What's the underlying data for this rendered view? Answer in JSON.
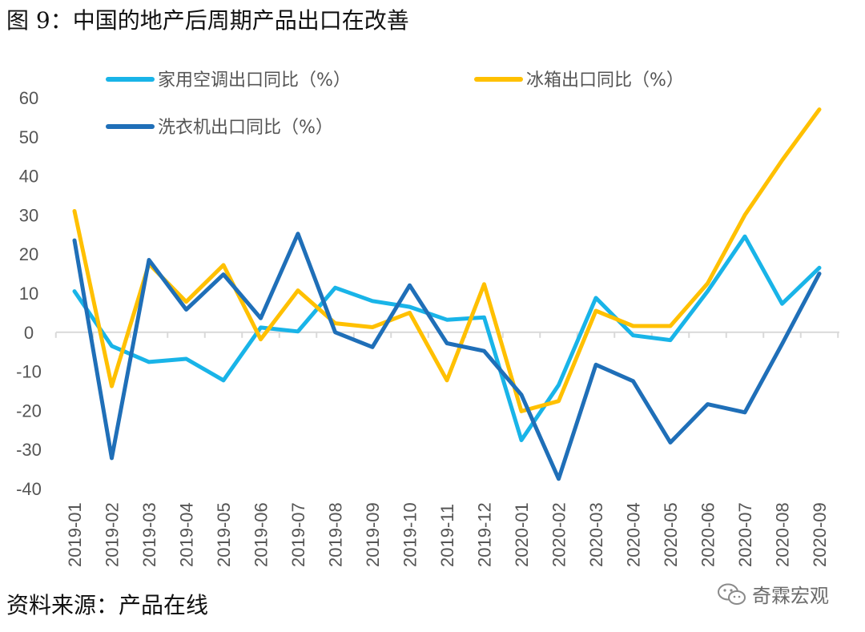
{
  "figure": {
    "title": "图 9：中国的地产后周期产品出口在改善",
    "source": "资料来源：产品在线",
    "watermark": "奇霖宏观",
    "watermark_icon": "wechat-icon"
  },
  "colors": {
    "ac": "#19B4E8",
    "fridge": "#FFC000",
    "washer": "#1F6FB8",
    "axis": "#D9D9D9",
    "text": "#555555"
  },
  "chart_data": {
    "type": "line",
    "title": "",
    "xlabel": "",
    "ylabel": "",
    "ylim": [
      -40,
      60
    ],
    "yticks": [
      -40,
      -30,
      -20,
      -10,
      0,
      10,
      20,
      30,
      40,
      50,
      60
    ],
    "grid": false,
    "legend_position": "top",
    "categories": [
      "2019-01",
      "2019-02",
      "2019-03",
      "2019-04",
      "2019-05",
      "2019-06",
      "2019-07",
      "2019-08",
      "2019-09",
      "2019-10",
      "2019-11",
      "2019-12",
      "2020-01",
      "2020-02",
      "2020-03",
      "2020-04",
      "2020-05",
      "2020-06",
      "2020-07",
      "2020-08",
      "2020-09"
    ],
    "series": [
      {
        "name": "家用空调出口同比（%）",
        "color_key": "ac",
        "values": [
          10.5,
          -3.5,
          -7.6,
          -6.8,
          -12.3,
          1.2,
          0.2,
          11.4,
          8.0,
          6.5,
          3.2,
          3.8,
          -27.6,
          -13.5,
          8.8,
          -0.8,
          -2.0,
          10.5,
          24.5,
          7.3,
          16.5
        ]
      },
      {
        "name": "冰箱出口同比（%）",
        "color_key": "fridge",
        "values": [
          31.0,
          -13.8,
          17.5,
          7.8,
          17.2,
          -1.8,
          10.7,
          2.3,
          1.3,
          5.0,
          -12.3,
          12.3,
          -20.2,
          -17.6,
          5.5,
          1.6,
          1.6,
          12.5,
          30.0,
          44.0,
          57.0
        ]
      },
      {
        "name": "洗衣机出口同比（%）",
        "color_key": "washer",
        "values": [
          23.5,
          -32.2,
          18.5,
          5.8,
          14.8,
          3.6,
          25.2,
          0.0,
          -3.8,
          12.0,
          -2.8,
          -4.8,
          -16.0,
          -37.5,
          -8.3,
          -12.5,
          -28.2,
          -18.4,
          -20.5,
          -3.0,
          15.0
        ]
      }
    ]
  }
}
